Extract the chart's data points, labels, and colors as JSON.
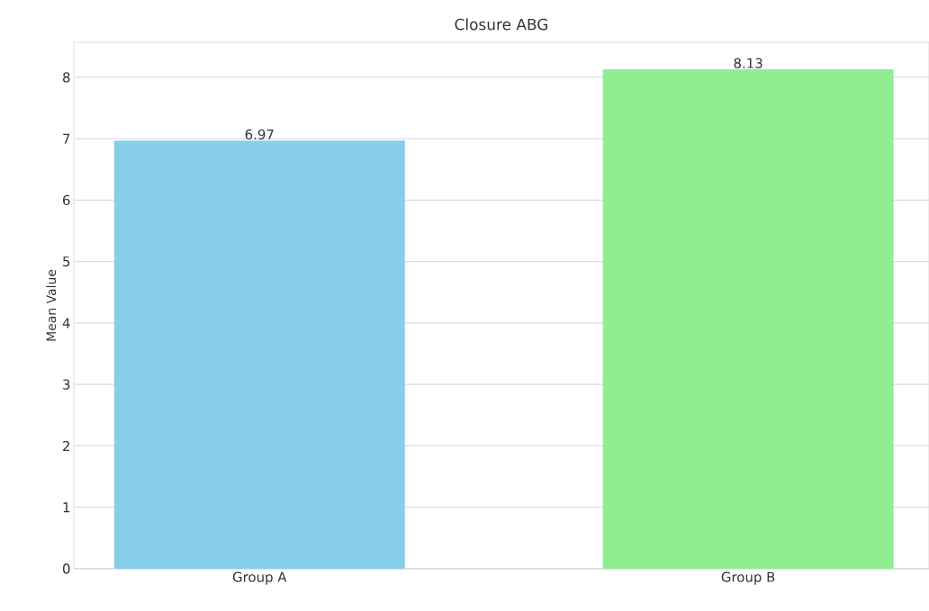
{
  "chart_data": {
    "type": "bar",
    "title": "Closure ABG",
    "ylabel": "Mean Value",
    "categories": [
      "Group A",
      "Group B"
    ],
    "values": [
      6.97,
      8.13
    ],
    "colors": [
      "#87ceeb",
      "#90ee90"
    ],
    "ylim": [
      0,
      8.57
    ],
    "yticks": [
      0,
      1,
      2,
      3,
      4,
      5,
      6,
      7,
      8
    ],
    "grid": "y",
    "data_labels": true
  }
}
